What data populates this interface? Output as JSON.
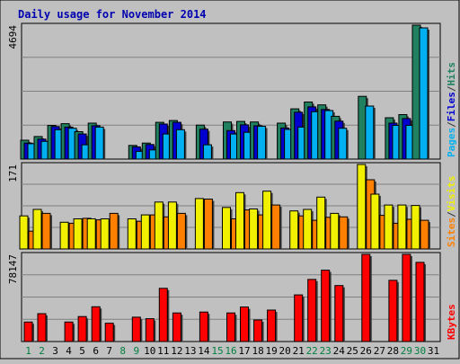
{
  "chart_data": {
    "type": "bar",
    "title": "Daily usage for November 2014",
    "days": [
      "1",
      "2",
      "3",
      "4",
      "5",
      "6",
      "7",
      "8",
      "9",
      "10",
      "11",
      "12",
      "13",
      "14",
      "15",
      "16",
      "17",
      "18",
      "19",
      "20",
      "21",
      "22",
      "23",
      "24",
      "25",
      "26",
      "27",
      "28",
      "29",
      "30",
      "31"
    ],
    "weekend_days": [
      1,
      2,
      8,
      9,
      15,
      16,
      22,
      23,
      29,
      30
    ],
    "panels": [
      {
        "id": "top",
        "max_label": "4694",
        "ymax": 4694,
        "legend": [
          {
            "text": "Pages",
            "color": "#00b0f0"
          },
          {
            "text": "/",
            "color": "#333333"
          },
          {
            "text": "Files",
            "color": "#0000d0"
          },
          {
            "text": "/",
            "color": "#333333"
          },
          {
            "text": "Hits",
            "color": "#208060"
          }
        ],
        "series": [
          {
            "name": "Hits",
            "color": "#208060",
            "values": [
              660,
              790,
              1180,
              1240,
              960,
              1260,
              null,
              null,
              480,
              560,
              1290,
              1350,
              null,
              1190,
              null,
              1300,
              1320,
              1300,
              null,
              1260,
              1760,
              2000,
              1900,
              1500,
              null,
              2200,
              null,
              1450,
              1560,
              4694,
              null
            ]
          },
          {
            "name": "Files",
            "color": "#0000d0",
            "values": [
              560,
              700,
              1140,
              1120,
              880,
              1170,
              null,
              null,
              430,
              510,
              1230,
              1290,
              null,
              1050,
              null,
              1000,
              1200,
              1170,
              null,
              1090,
              1640,
              1830,
              1740,
              1330,
              null,
              null,
              null,
              1260,
              1420,
              null,
              null
            ]
          },
          {
            "name": "Pages",
            "color": "#00b0f0",
            "values": [
              540,
              620,
              1030,
              1080,
              500,
              1120,
              null,
              null,
              270,
              320,
              880,
              1030,
              null,
              500,
              null,
              880,
              940,
              1150,
              null,
              1040,
              1120,
              1660,
              1700,
              1080,
              null,
              1860,
              null,
              1180,
              1180,
              4600,
              null
            ]
          }
        ]
      },
      {
        "id": "middle",
        "max_label": "171",
        "ymax": 171,
        "legend": [
          {
            "text": "Sites",
            "color": "#ff8000"
          },
          {
            "text": "/",
            "color": "#333333"
          },
          {
            "text": "Visits",
            "color": "#f0f000"
          }
        ],
        "series": [
          {
            "name": "Visits",
            "color": "#f0f000",
            "values": [
              67,
              80,
              null,
              54,
              61,
              61,
              61,
              null,
              61,
              69,
              95,
              95,
              null,
              102,
              null,
              84,
              114,
              81,
              117,
              null,
              77,
              80,
              105,
              72,
              null,
              171,
              111,
              89,
              89,
              88,
              null
            ]
          },
          {
            "name": "Sites",
            "color": "#ff8000",
            "values": [
              36,
              72,
              null,
              52,
              62,
              59,
              72,
              null,
              56,
              69,
              65,
              72,
              null,
              101,
              null,
              61,
              79,
              69,
              89,
              null,
              67,
              58,
              64,
              65,
              null,
              140,
              68,
              52,
              60,
              58,
              null
            ]
          }
        ]
      },
      {
        "id": "bottom",
        "max_label": "78147",
        "ymax": 78147,
        "legend": [
          {
            "text": "KBytes",
            "color": "#ff0000"
          }
        ],
        "series": [
          {
            "name": "KBytes",
            "color": "#ff0000",
            "values": [
              17500,
              25000,
              null,
              17500,
              22400,
              31200,
              16400,
              null,
              21800,
              20500,
              47700,
              25600,
              null,
              26400,
              null,
              25600,
              30900,
              19300,
              28200,
              null,
              41800,
              55700,
              64000,
              50200,
              null,
              78147,
              null,
              54900,
              78147,
              71000,
              null
            ]
          }
        ]
      }
    ]
  }
}
